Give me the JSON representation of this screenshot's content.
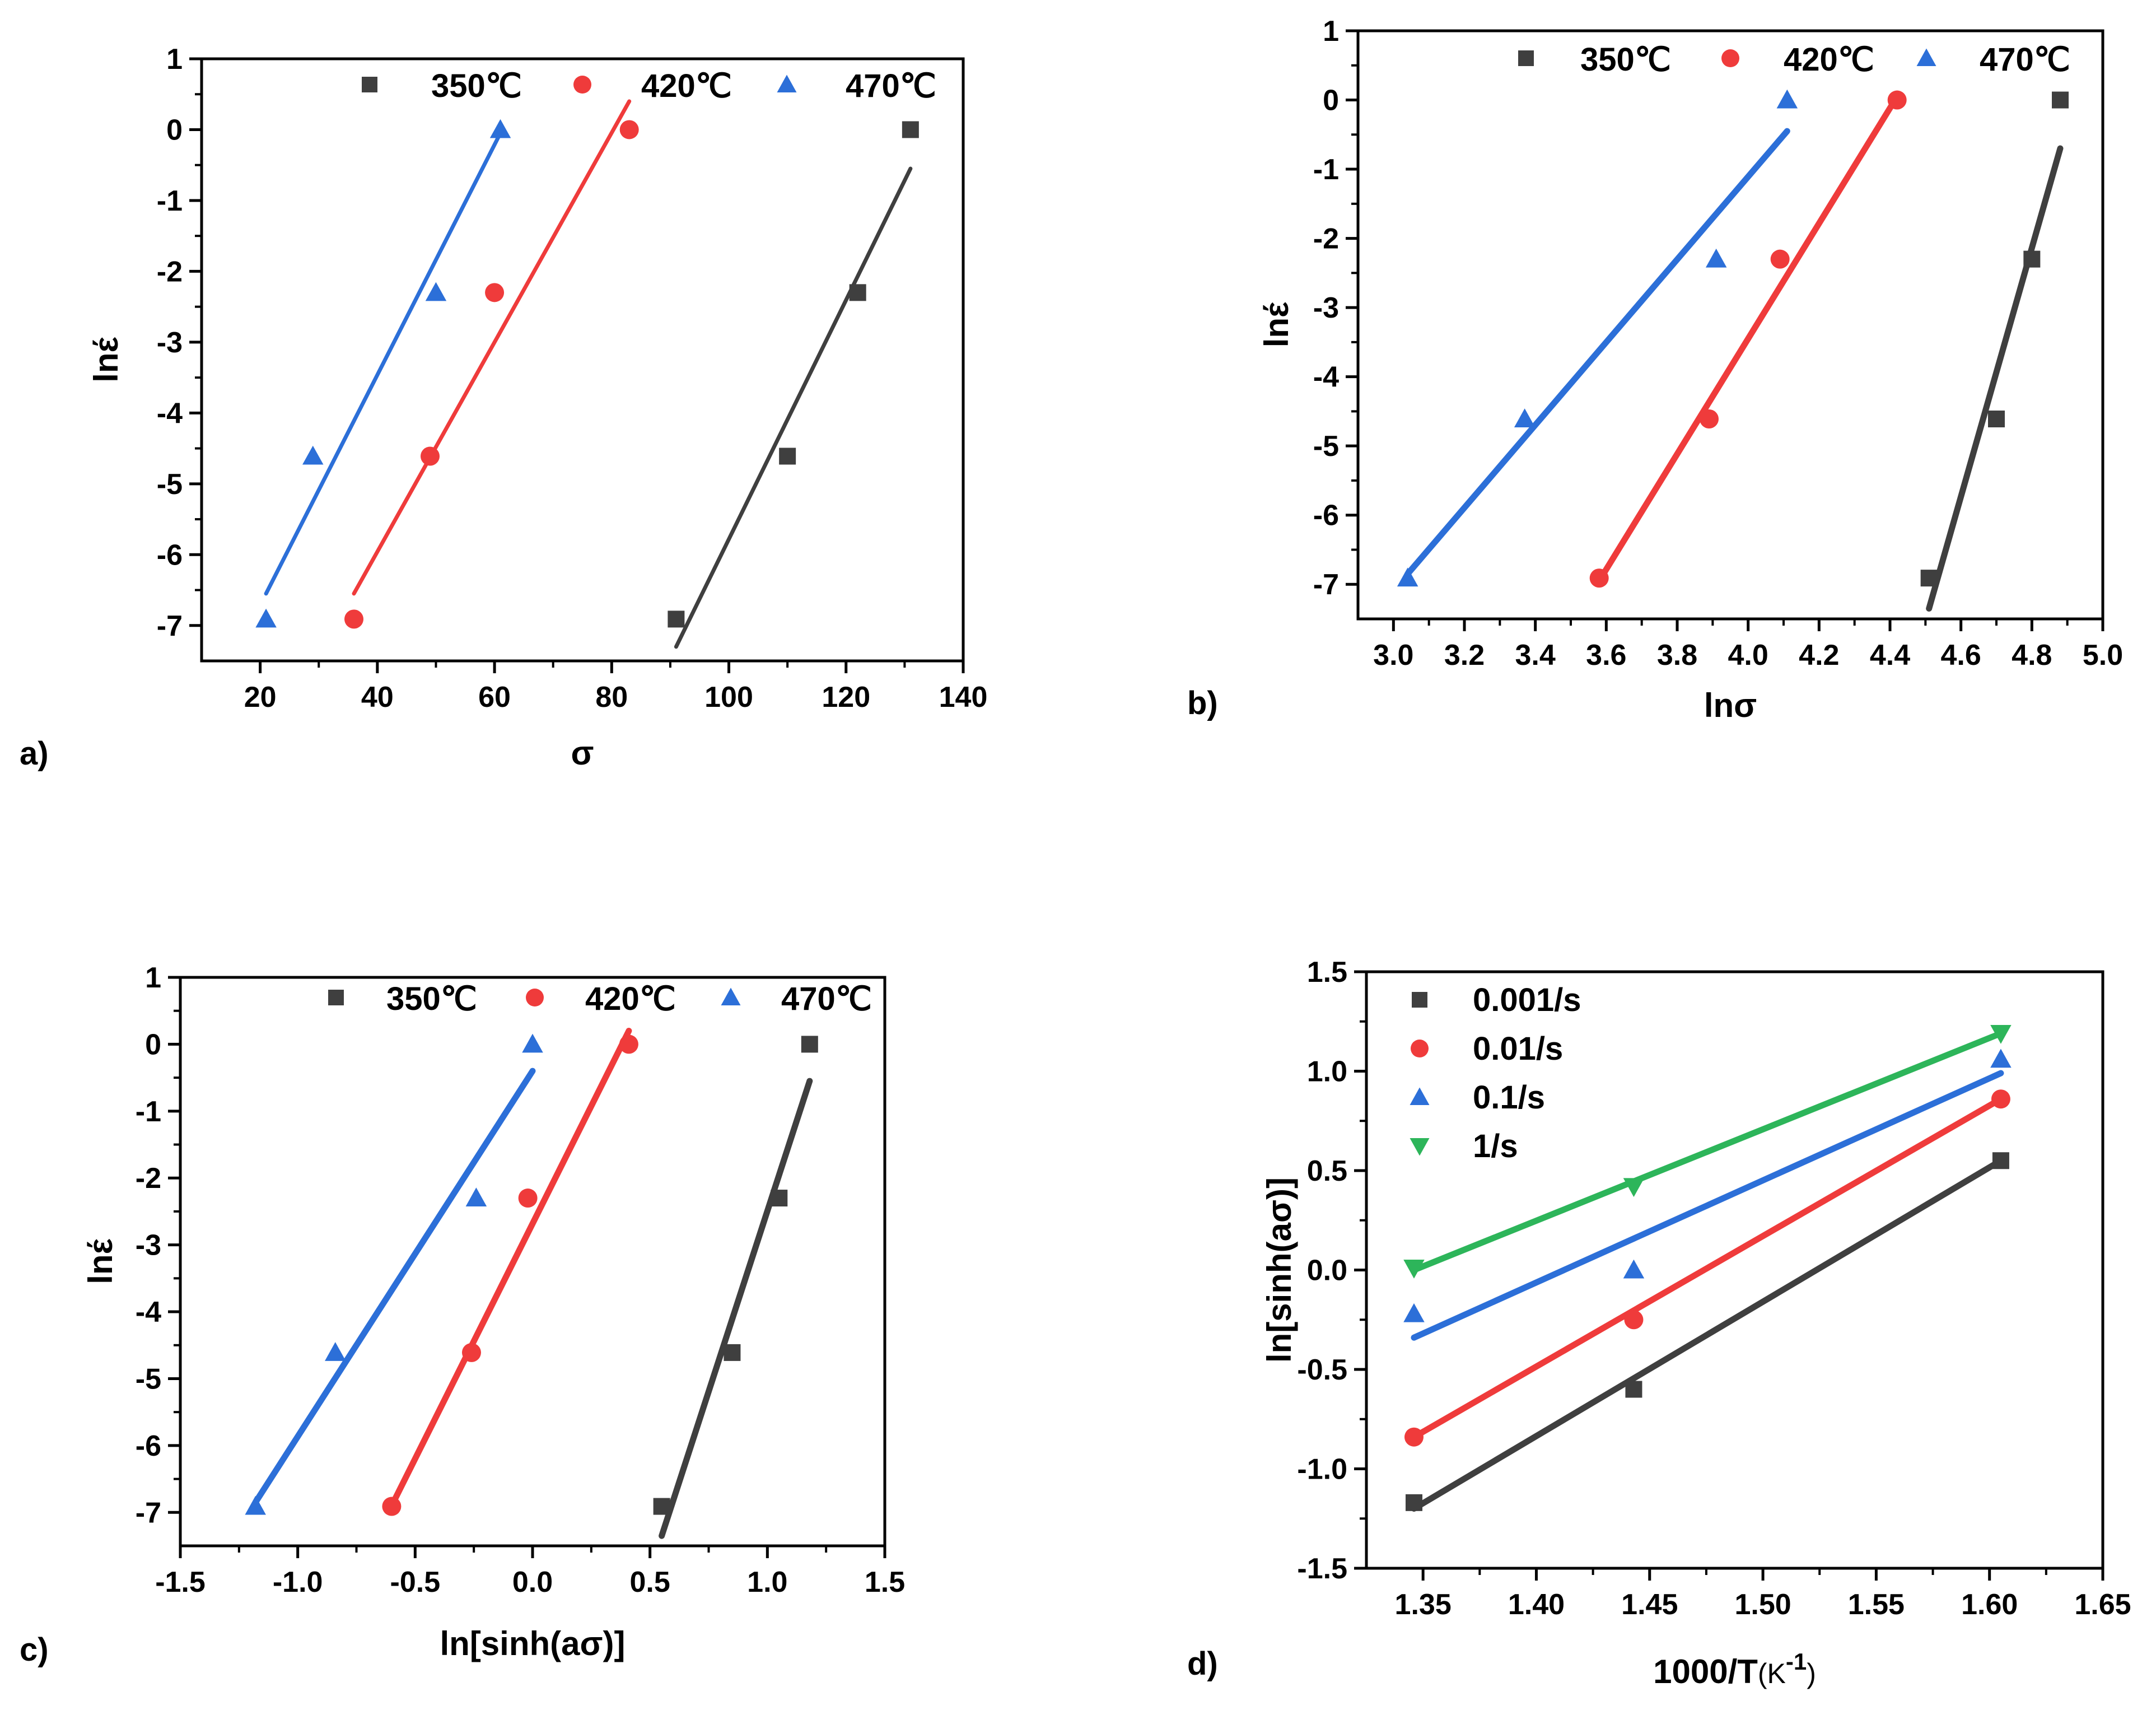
{
  "chart_data": [
    {
      "type": "scatter",
      "panel_label": "a)",
      "xlabel": "σ",
      "ylabel": "lnέ",
      "xlim": [
        10,
        140
      ],
      "ylim": [
        -7.5,
        1
      ],
      "xticks": [
        20,
        40,
        60,
        80,
        100,
        120,
        140
      ],
      "yticks": [
        1,
        0,
        -1,
        -2,
        -3,
        -4,
        -5,
        -6,
        -7
      ],
      "legend_placement": "top",
      "series": [
        {
          "name": "350℃",
          "color": "#3f3f3f",
          "marker": "square",
          "points": [
            [
              91,
              -6.91
            ],
            [
              110,
              -4.61
            ],
            [
              122,
              -2.3
            ],
            [
              131,
              0
            ]
          ],
          "fit": [
            [
              91,
              -7.3
            ],
            [
              131,
              -0.55
            ]
          ]
        },
        {
          "name": "420℃",
          "color": "#ef3b3b",
          "marker": "circle",
          "points": [
            [
              36,
              -6.91
            ],
            [
              49,
              -4.61
            ],
            [
              60,
              -2.3
            ],
            [
              83,
              0
            ]
          ],
          "fit": [
            [
              36,
              -6.55
            ],
            [
              83,
              0.4
            ]
          ]
        },
        {
          "name": "470℃",
          "color": "#2c6fd8",
          "marker": "triangle-up",
          "points": [
            [
              21,
              -6.91
            ],
            [
              29,
              -4.61
            ],
            [
              50,
              -2.3
            ],
            [
              61,
              0
            ]
          ],
          "fit": [
            [
              21,
              -6.55
            ],
            [
              61,
              -0.05
            ]
          ]
        }
      ]
    },
    {
      "type": "scatter",
      "panel_label": "b)",
      "xlabel": "lnσ",
      "ylabel": "lnέ",
      "xlim": [
        2.9,
        5.0
      ],
      "ylim": [
        -7.5,
        1
      ],
      "xticks": [
        3.0,
        3.2,
        3.4,
        3.6,
        3.8,
        4.0,
        4.2,
        4.4,
        4.6,
        4.8,
        5.0
      ],
      "xtick_labels": [
        "3.0",
        "3.2",
        "3.4",
        "3.6",
        "3.8",
        "4.0",
        "4.2",
        "4.4",
        "4.6",
        "4.8",
        "5.0"
      ],
      "yticks": [
        1,
        0,
        -1,
        -2,
        -3,
        -4,
        -5,
        -6,
        -7
      ],
      "legend_placement": "top",
      "series": [
        {
          "name": "350℃",
          "color": "#3f3f3f",
          "marker": "square",
          "points": [
            [
              4.51,
              -6.91
            ],
            [
              4.7,
              -4.61
            ],
            [
              4.8,
              -2.3
            ],
            [
              4.88,
              0
            ]
          ],
          "fit": [
            [
              4.51,
              -7.35
            ],
            [
              4.88,
              -0.7
            ]
          ]
        },
        {
          "name": "420℃",
          "color": "#ef3b3b",
          "marker": "circle",
          "points": [
            [
              3.58,
              -6.91
            ],
            [
              3.89,
              -4.61
            ],
            [
              4.09,
              -2.3
            ],
            [
              4.42,
              0
            ]
          ],
          "fit": [
            [
              3.58,
              -6.95
            ],
            [
              4.42,
              0.05
            ]
          ]
        },
        {
          "name": "470℃",
          "color": "#2c6fd8",
          "marker": "triangle-up",
          "points": [
            [
              3.04,
              -6.91
            ],
            [
              3.37,
              -4.61
            ],
            [
              3.91,
              -2.3
            ],
            [
              4.11,
              0
            ]
          ],
          "fit": [
            [
              3.04,
              -6.85
            ],
            [
              4.11,
              -0.45
            ]
          ]
        }
      ]
    },
    {
      "type": "scatter",
      "panel_label": "c)",
      "xlabel": "ln[sinh(aσ)]",
      "ylabel": "lnέ",
      "xlim": [
        -1.5,
        1.5
      ],
      "ylim": [
        -7.5,
        1
      ],
      "xticks": [
        -1.5,
        -1.0,
        -0.5,
        0.0,
        0.5,
        1.0,
        1.5
      ],
      "xtick_labels": [
        "-1.5",
        "-1.0",
        "-0.5",
        "0.0",
        "0.5",
        "1.0",
        "1.5"
      ],
      "yticks": [
        1,
        0,
        -1,
        -2,
        -3,
        -4,
        -5,
        -6,
        -7
      ],
      "legend_placement": "top",
      "series": [
        {
          "name": "350℃",
          "color": "#3f3f3f",
          "marker": "square",
          "points": [
            [
              0.55,
              -6.91
            ],
            [
              0.85,
              -4.61
            ],
            [
              1.05,
              -2.3
            ],
            [
              1.18,
              0
            ]
          ],
          "fit": [
            [
              0.55,
              -7.35
            ],
            [
              1.18,
              -0.55
            ]
          ]
        },
        {
          "name": "420℃",
          "color": "#ef3b3b",
          "marker": "circle",
          "points": [
            [
              -0.6,
              -6.91
            ],
            [
              -0.26,
              -4.61
            ],
            [
              -0.02,
              -2.3
            ],
            [
              0.41,
              0
            ]
          ],
          "fit": [
            [
              -0.6,
              -6.9
            ],
            [
              0.41,
              0.2
            ]
          ]
        },
        {
          "name": "470℃",
          "color": "#2c6fd8",
          "marker": "triangle-up",
          "points": [
            [
              -1.18,
              -6.91
            ],
            [
              -0.84,
              -4.61
            ],
            [
              -0.24,
              -2.3
            ],
            [
              0.0,
              0
            ]
          ],
          "fit": [
            [
              -1.18,
              -6.85
            ],
            [
              0.0,
              -0.4
            ]
          ]
        }
      ]
    },
    {
      "type": "scatter",
      "panel_label": "d)",
      "xlabel_main": "1000/T",
      "xlabel_unit_open": "(K",
      "xlabel_sup": "-1",
      "xlabel_unit_close": ")",
      "ylabel": "ln[sinh(aσ)]",
      "xlim": [
        1.325,
        1.65
      ],
      "ylim": [
        -1.5,
        1.5
      ],
      "xticks": [
        1.35,
        1.4,
        1.45,
        1.5,
        1.55,
        1.6,
        1.65
      ],
      "xtick_labels": [
        "1.35",
        "1.40",
        "1.45",
        "1.50",
        "1.55",
        "1.60",
        "1.65"
      ],
      "yticks": [
        1.5,
        1.0,
        0.5,
        0.0,
        -0.5,
        -1.0,
        -1.5
      ],
      "ytick_labels": [
        "1.5",
        "1.0",
        "0.5",
        "0.0",
        "-0.5",
        "-1.0",
        "-1.5"
      ],
      "legend_placement": "top-left",
      "series": [
        {
          "name": "0.001/s",
          "color": "#3f3f3f",
          "marker": "square",
          "points": [
            [
              1.346,
              -1.17
            ],
            [
              1.443,
              -0.6
            ],
            [
              1.605,
              0.55
            ]
          ],
          "fit": [
            [
              1.346,
              -1.2
            ],
            [
              1.605,
              0.55
            ]
          ]
        },
        {
          "name": "0.01/s",
          "color": "#ef3b3b",
          "marker": "circle",
          "points": [
            [
              1.346,
              -0.84
            ],
            [
              1.443,
              -0.25
            ],
            [
              1.605,
              0.86
            ]
          ],
          "fit": [
            [
              1.346,
              -0.84
            ],
            [
              1.605,
              0.86
            ]
          ]
        },
        {
          "name": "0.1/s",
          "color": "#2c6fd8",
          "marker": "triangle-up",
          "points": [
            [
              1.346,
              -0.22
            ],
            [
              1.443,
              0.0
            ],
            [
              1.605,
              1.06
            ]
          ],
          "fit": [
            [
              1.346,
              -0.34
            ],
            [
              1.605,
              0.99
            ]
          ]
        },
        {
          "name": "1/s",
          "color": "#2db55a",
          "marker": "triangle-down",
          "points": [
            [
              1.346,
              0.01
            ],
            [
              1.443,
              0.42
            ],
            [
              1.605,
              1.19
            ]
          ],
          "fit": [
            [
              1.346,
              0.0
            ],
            [
              1.605,
              1.19
            ]
          ]
        }
      ]
    }
  ]
}
